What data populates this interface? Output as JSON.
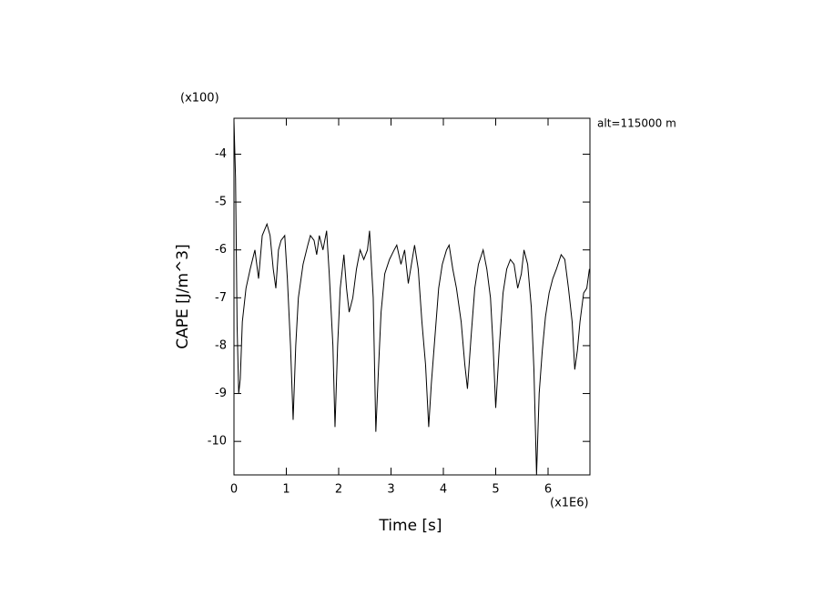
{
  "chart_data": {
    "type": "line",
    "x_label": "Time [s]",
    "y_label": "CAPE [J/m^3]",
    "x_multiplier": "(x1E6)",
    "y_multiplier": "(x100)",
    "annotation": "alt=115000 m",
    "xlim": [
      0,
      6.8
    ],
    "ylim": [
      -10.7,
      -3.25
    ],
    "xticks": [
      0,
      1,
      2,
      3,
      4,
      5,
      6
    ],
    "yticks": [
      -10,
      -9,
      -8,
      -7,
      -6,
      -5,
      -4
    ],
    "series": [
      {
        "color": "#000000",
        "x": [
          0,
          0.03,
          0.06,
          0.09,
          0.12,
          0.16,
          0.23,
          0.31,
          0.4,
          0.47,
          0.54,
          0.63,
          0.69,
          0.75,
          0.8,
          0.85,
          0.9,
          0.97,
          1.02,
          1.08,
          1.13,
          1.18,
          1.23,
          1.32,
          1.41,
          1.46,
          1.53,
          1.58,
          1.63,
          1.7,
          1.77,
          1.82,
          1.89,
          1.93,
          1.98,
          2.03,
          2.1,
          2.15,
          2.2,
          2.27,
          2.34,
          2.41,
          2.48,
          2.55,
          2.59,
          2.66,
          2.71,
          2.76,
          2.81,
          2.88,
          2.97,
          3.06,
          3.11,
          3.19,
          3.26,
          3.33,
          3.39,
          3.45,
          3.52,
          3.59,
          3.66,
          3.72,
          3.77,
          3.84,
          3.91,
          3.98,
          4.06,
          4.11,
          4.18,
          4.25,
          4.34,
          4.41,
          4.46,
          4.53,
          4.6,
          4.67,
          4.76,
          4.83,
          4.9,
          4.95,
          5.0,
          5.07,
          5.14,
          5.21,
          5.28,
          5.35,
          5.42,
          5.49,
          5.54,
          5.61,
          5.68,
          5.73,
          5.78,
          5.83,
          5.89,
          5.95,
          6.02,
          6.09,
          6.16,
          6.25,
          6.32,
          6.39,
          6.46,
          6.51,
          6.56,
          6.61,
          6.68,
          6.74,
          6.79
        ],
        "values": [
          -3.3,
          -4.5,
          -7.6,
          -9.0,
          -8.7,
          -7.5,
          -6.8,
          -6.4,
          -6.0,
          -6.6,
          -5.7,
          -5.46,
          -5.7,
          -6.4,
          -6.8,
          -6.0,
          -5.8,
          -5.7,
          -6.6,
          -8.0,
          -9.55,
          -8.0,
          -7.0,
          -6.3,
          -5.9,
          -5.7,
          -5.8,
          -6.1,
          -5.7,
          -6.0,
          -5.6,
          -6.5,
          -8.0,
          -9.7,
          -8.0,
          -6.8,
          -6.1,
          -6.8,
          -7.3,
          -7.0,
          -6.4,
          -6.0,
          -6.2,
          -6.0,
          -5.6,
          -7.0,
          -9.8,
          -8.5,
          -7.3,
          -6.5,
          -6.2,
          -6.0,
          -5.9,
          -6.3,
          -6.0,
          -6.7,
          -6.3,
          -5.9,
          -6.4,
          -7.5,
          -8.4,
          -9.7,
          -8.8,
          -7.8,
          -6.8,
          -6.3,
          -6.0,
          -5.9,
          -6.4,
          -6.8,
          -7.5,
          -8.4,
          -8.9,
          -7.8,
          -6.8,
          -6.3,
          -6.0,
          -6.4,
          -7.0,
          -8.0,
          -9.3,
          -8.0,
          -6.9,
          -6.4,
          -6.2,
          -6.3,
          -6.8,
          -6.5,
          -6.0,
          -6.3,
          -7.2,
          -8.5,
          -10.7,
          -9.0,
          -8.1,
          -7.4,
          -6.9,
          -6.6,
          -6.4,
          -6.1,
          -6.2,
          -6.8,
          -7.5,
          -8.5,
          -8.1,
          -7.5,
          -6.9,
          -6.8,
          -6.4
        ]
      }
    ]
  }
}
